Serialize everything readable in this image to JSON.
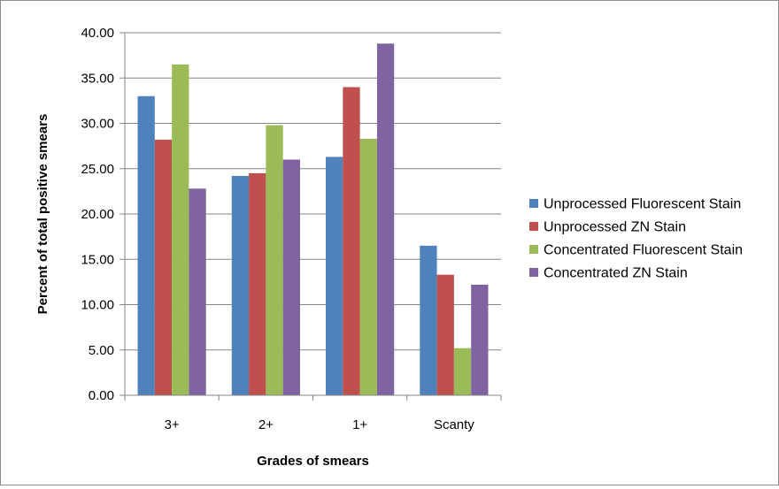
{
  "chart_data": {
    "type": "bar",
    "title": "",
    "xlabel": "Grades of smears",
    "ylabel": "Percent of total positive smears",
    "categories": [
      "3+",
      "2+",
      "1+",
      "Scanty"
    ],
    "ylim": [
      0,
      40
    ],
    "ytick_step": 5,
    "yticks": [
      "0.00",
      "5.00",
      "10.00",
      "15.00",
      "20.00",
      "25.00",
      "30.00",
      "35.00",
      "40.00"
    ],
    "grid": true,
    "legend_position": "right",
    "series": [
      {
        "name": "Unprocessed Fluorescent Stain",
        "color": "#4f81bd",
        "values": [
          33.0,
          24.2,
          26.3,
          16.5
        ]
      },
      {
        "name": "Unprocessed ZN Stain",
        "color": "#c0504d",
        "values": [
          28.2,
          24.5,
          34.0,
          13.3
        ]
      },
      {
        "name": "Concentrated Fluorescent Stain",
        "color": "#9bbb59",
        "values": [
          36.5,
          29.8,
          28.3,
          5.2
        ]
      },
      {
        "name": "Concentrated ZN Stain",
        "color": "#8064a2",
        "values": [
          22.8,
          26.0,
          38.8,
          12.2
        ]
      }
    ]
  }
}
